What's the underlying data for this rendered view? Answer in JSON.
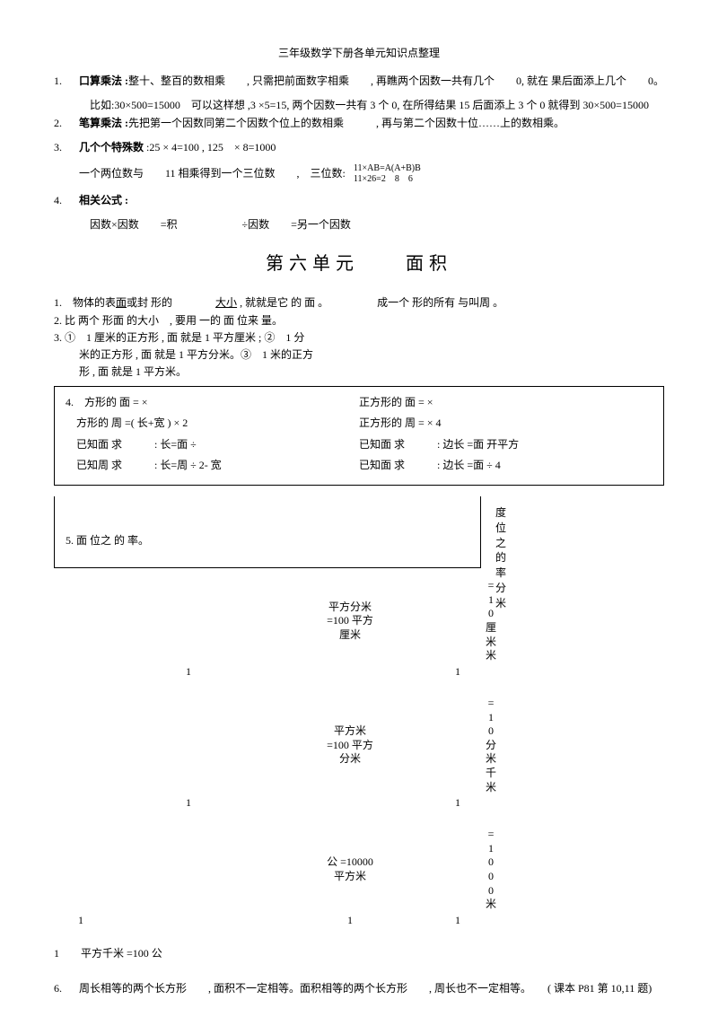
{
  "title": "三年级数学下册各单元知识点整理",
  "items": {
    "i1_num": "1.",
    "i1_label": "口算乘法 :",
    "i1_text": "整十、整百的数相乘　　, 只需把前面数字相乘　　, 再瞧两个因数一共有几个　　0, 就在  果后面添上几个　　0。",
    "i1_example": "比如:30×500=15000　可以这样想 ,3 ×5=15, 两个因数一共有 3 个 0, 在所得结果 15 后面添上 3 个 0 就得到 30×500=15000",
    "i2_num": "2.",
    "i2_label": "笔算乘法 :",
    "i2_text": "先把第一个因数同第二个因数个位上的数相乘　　　, 再与第二个因数十位……上的数相乘。",
    "i3_num": "3.",
    "i3_label": "几个个特殊数",
    "i3_text": " :25 × 4=100 , 125　× 8=1000",
    "i3_sub": "一个两位数与　　11 相乘得到一个三位数　　,　三位数:",
    "i3_formula1": "11×AB=A(A+B)B",
    "i3_formula2": "11×26=2　8　6",
    "i4_num": "4.",
    "i4_label": "相关公式 :",
    "i4_text": "因数×因数　　=积　　　　　　÷因数　　=另一个因数"
  },
  "unit_title": "第六单元　　面积",
  "section2": {
    "s1": "1.　物体的表",
    "s1_u": "面",
    "s1_b": "或封   形的　　　　",
    "s1_u2": "大小",
    "s1_c": " , 就就是它  的 面 。　　　　　成一个  形的所有   与叫周  。",
    "s2": "2. 比   两个   形面 的大小　, 要用  一的 面   位来   量。",
    "s3a": "3. ①　1 厘米的正方形 , 面 就是 1 平方厘米 ; ②　1 分",
    "s3b": "米的正方形 , 面 就是 1 平方分米。③　1 米的正方",
    "s3c": "形 , 面   就是 1 平方米。"
  },
  "box": {
    "r1a": "4.　方形的 面   = ×",
    "r1b": "正方形的 面   = ×",
    "r2a": "　方形的 周   =(  长+宽  ) × 2",
    "r2b": "正方形的 周   = × 4",
    "r3a": "　已知面  求　　　: 长=面  ÷",
    "r3b": "已知面  求　　　: 边长 =面  开平方",
    "r4a": "　已知周  求　　　: 长=周  ÷ 2-  宽",
    "r4b": "已知面  求　　　: 边长 =面  ÷ 4"
  },
  "box2": {
    "label": "5. 面   位之  的  率。",
    "vert": "度位之的率分米"
  },
  "conv": {
    "c1_mid": "平方分米\n=100 平方\n厘米",
    "c1_right": "=10　厘米米",
    "c2_mid": "平方米\n=100 平方\n分米",
    "c2_right": "=10　分米千米",
    "c3_mid": "公   =10000\n平方米",
    "c3_right": "=1000　米",
    "one": "1",
    "final": "1　　平方千米 =100 公"
  },
  "item6_num": "6.",
  "item6": "周长相等的两个长方形　　, 面积不一定相等。面积相等的两个长方形　　, 周长也不一定相等。　　( 课本 P81 第 10,11 题)"
}
